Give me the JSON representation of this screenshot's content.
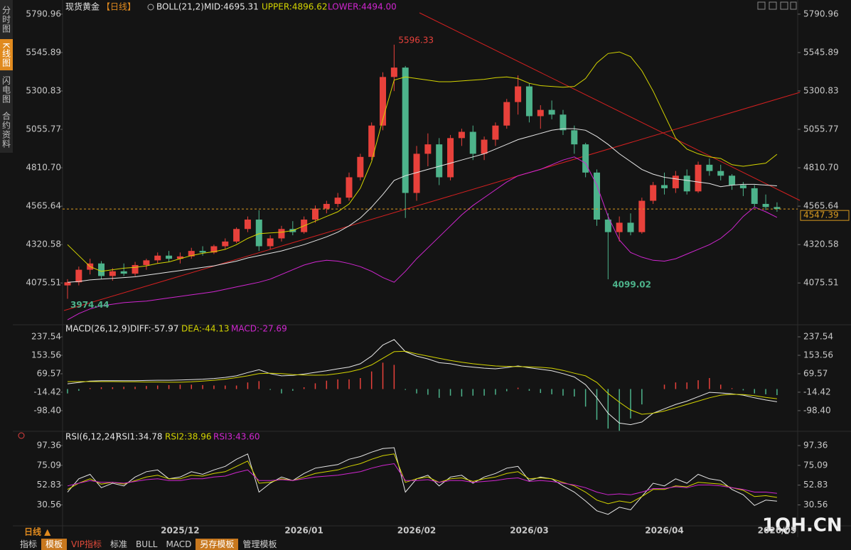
{
  "sidebar": [
    "分时图",
    "K线图",
    "闪电图",
    "合约资料"
  ],
  "toolbar": [
    "指标",
    "模板",
    "VIP指标",
    "标准",
    "BULL",
    "MACD",
    "另存模板",
    "管理模板"
  ],
  "period_selector": "日线 ▲",
  "watermark": "1QH.CN",
  "chart_data": [
    {
      "type": "candlestick",
      "title": "现货黄金",
      "period": "【日线】",
      "indicator": "BOLL(21,2)",
      "categories": [
        null,
        null,
        null,
        null,
        null,
        null,
        null,
        null,
        null,
        null,
        "2025/12",
        null,
        null,
        null,
        null,
        null,
        null,
        null,
        null,
        null,
        null,
        "2026/01",
        null,
        null,
        null,
        null,
        null,
        null,
        null,
        null,
        null,
        "2026/02",
        null,
        null,
        null,
        null,
        null,
        null,
        null,
        null,
        null,
        "2026/03",
        null,
        null,
        null,
        null,
        null,
        null,
        null,
        null,
        null,
        null,
        null,
        "2026/04",
        null,
        null,
        null,
        null,
        null,
        null,
        null,
        null,
        null,
        "2026/05"
      ],
      "open": [
        4060,
        4080,
        4160,
        4200,
        4120,
        4150,
        4135,
        4190,
        4220,
        4250,
        4230,
        4245,
        4280,
        4270,
        4310,
        4340,
        4420,
        4480,
        4310,
        4360,
        4420,
        4400,
        4480,
        4550,
        4580,
        4620,
        4750,
        4880,
        5080,
        5390,
        5450,
        4650,
        4900,
        4960,
        4750,
        5000,
        5040,
        4900,
        4990,
        5080,
        5230,
        5330,
        5140,
        5180,
        5150,
        5050,
        4960,
        4780,
        4480,
        4400,
        4460,
        4400,
        4600,
        4700,
        4680,
        4760,
        4660,
        4830,
        4790,
        4760,
        4700,
        4680,
        4580,
        4560
      ],
      "high": [
        4100,
        4180,
        4230,
        4215,
        4170,
        4200,
        4210,
        4230,
        4270,
        4280,
        4270,
        4300,
        4310,
        4320,
        4360,
        4430,
        4500,
        4540,
        4380,
        4440,
        4470,
        4500,
        4570,
        4600,
        4650,
        4780,
        4900,
        5100,
        5420,
        5596.33,
        5460,
        4950,
        5030,
        5000,
        5020,
        5060,
        5080,
        5010,
        5100,
        5250,
        5400,
        5350,
        5210,
        5240,
        5180,
        5080,
        4970,
        4800,
        4520,
        4500,
        4520,
        4620,
        4720,
        4780,
        4790,
        4800,
        4850,
        4870,
        4830,
        4770,
        4720,
        4700,
        4640,
        4590
      ],
      "low": [
        3974.44,
        4060,
        4130,
        4100,
        4090,
        4120,
        4120,
        4160,
        4200,
        4210,
        4200,
        4230,
        4250,
        4260,
        4290,
        4330,
        4400,
        4280,
        4290,
        4340,
        4380,
        4390,
        4460,
        4520,
        4560,
        4600,
        4730,
        4860,
        5050,
        5300,
        4490,
        4600,
        4820,
        4700,
        4730,
        4950,
        4860,
        4860,
        4950,
        5060,
        5150,
        5100,
        5060,
        5120,
        5020,
        4900,
        4750,
        4440,
        4099.02,
        4340,
        4380,
        4390,
        4580,
        4640,
        4650,
        4640,
        4650,
        4760,
        4730,
        4670,
        4630,
        4560,
        4540,
        4530
      ],
      "close": [
        4080,
        4160,
        4200,
        4120,
        4150,
        4135,
        4190,
        4220,
        4250,
        4230,
        4245,
        4280,
        4270,
        4310,
        4340,
        4420,
        4480,
        4310,
        4360,
        4420,
        4400,
        4480,
        4550,
        4580,
        4620,
        4750,
        4880,
        5080,
        5390,
        5450,
        4650,
        4900,
        4960,
        4750,
        5000,
        5040,
        4900,
        4990,
        5080,
        5230,
        5330,
        5140,
        5180,
        5150,
        5050,
        4960,
        4780,
        4480,
        4400,
        4460,
        4400,
        4600,
        4700,
        4680,
        4760,
        4660,
        4830,
        4790,
        4760,
        4700,
        4680,
        4580,
        4560,
        4547.39
      ],
      "up_color": "#e8413b",
      "down_color": "#4db38b",
      "series": [
        {
          "name": "MID:4695.31",
          "color": "#e6e6e6",
          "values": [
            4080,
            4085,
            4095,
            4100,
            4105,
            4110,
            4115,
            4125,
            4135,
            4145,
            4155,
            4165,
            4175,
            4185,
            4200,
            4215,
            4235,
            4250,
            4265,
            4280,
            4300,
            4320,
            4345,
            4370,
            4400,
            4440,
            4490,
            4560,
            4640,
            4730,
            4760,
            4780,
            4800,
            4820,
            4840,
            4860,
            4880,
            4900,
            4930,
            4960,
            4990,
            5010,
            5030,
            5050,
            5060,
            5060,
            5050,
            5010,
            4960,
            4900,
            4850,
            4800,
            4770,
            4750,
            4740,
            4730,
            4720,
            4710,
            4690,
            4700,
            4705,
            4705,
            4700,
            4695.31
          ]
        },
        {
          "name": "UPPER:4896.62",
          "color": "#d4d400",
          "values": [
            4320,
            4250,
            4180,
            4150,
            4160,
            4170,
            4175,
            4185,
            4200,
            4210,
            4230,
            4250,
            4265,
            4275,
            4290,
            4320,
            4360,
            4390,
            4395,
            4400,
            4410,
            4440,
            4470,
            4500,
            4530,
            4580,
            4680,
            4850,
            5120,
            5370,
            5390,
            5380,
            5370,
            5360,
            5360,
            5365,
            5370,
            5375,
            5385,
            5390,
            5380,
            5350,
            5335,
            5330,
            5325,
            5330,
            5380,
            5480,
            5540,
            5550,
            5520,
            5430,
            5300,
            5150,
            5000,
            4930,
            4900,
            4880,
            4870,
            4830,
            4820,
            4830,
            4840,
            4896.62
          ]
        },
        {
          "name": "LOWER:4494.00",
          "color": "#d026d0",
          "values": [
            3840,
            3880,
            3910,
            3930,
            3940,
            3950,
            3955,
            3960,
            3970,
            3980,
            3990,
            4000,
            4010,
            4020,
            4035,
            4050,
            4065,
            4080,
            4100,
            4130,
            4160,
            4190,
            4210,
            4220,
            4215,
            4200,
            4180,
            4150,
            4110,
            4080,
            4150,
            4230,
            4300,
            4370,
            4440,
            4510,
            4570,
            4620,
            4670,
            4720,
            4760,
            4780,
            4800,
            4830,
            4860,
            4880,
            4840,
            4700,
            4500,
            4350,
            4270,
            4240,
            4220,
            4215,
            4230,
            4260,
            4290,
            4320,
            4360,
            4420,
            4500,
            4560,
            4530,
            4494
          ]
        }
      ],
      "last_price": 4547.39,
      "ylim": [
        3818,
        5845
      ],
      "yticks": [
        5790.96,
        5545.89,
        5300.83,
        5055.77,
        {
          "value": 4810.7,
          "label": "4810.70"
        },
        4565.64,
        4320.58,
        4075.51
      ]
    },
    {
      "type": "macd",
      "title": "MACD(26,12,9)",
      "up_color": "#e8413b",
      "down_color": "#4db38b",
      "series": [
        {
          "name": "DIFF:-57.97",
          "color": "#e6e6e6",
          "values": [
            24,
            30,
            36,
            38,
            38,
            38,
            38,
            39,
            40,
            40,
            41,
            43,
            45,
            48,
            53,
            60,
            75,
            88,
            70,
            60,
            62,
            68,
            76,
            83,
            92,
            100,
            115,
            150,
            200,
            225,
            170,
            150,
            137,
            120,
            115,
            105,
            100,
            95,
            92,
            98,
            105,
            97,
            90,
            83,
            70,
            55,
            20,
            -40,
            -110,
            -155,
            -162,
            -150,
            -110,
            -90,
            -70,
            -55,
            -35,
            -15,
            -18,
            -22,
            -28,
            -40,
            -50,
            -57.97
          ]
        },
        {
          "name": "DEA:-44.13",
          "color": "#d4d400",
          "values": [
            34,
            34,
            34,
            34,
            34,
            33,
            33,
            32,
            32,
            31,
            31,
            33,
            36,
            40,
            45,
            52,
            60,
            70,
            72,
            70,
            66,
            64,
            63,
            64,
            70,
            78,
            90,
            110,
            140,
            170,
            172,
            160,
            150,
            140,
            130,
            122,
            115,
            110,
            105,
            103,
            102,
            101,
            99,
            95,
            85,
            72,
            60,
            30,
            -20,
            -60,
            -95,
            -115,
            -110,
            -100,
            -85,
            -70,
            -55,
            -40,
            -28,
            -24,
            -25,
            -30,
            -38,
            -44.13
          ]
        },
        {
          "name": "MACD:-27.69",
          "color": "#d026d0",
          "values": [
            -20,
            -8,
            4,
            8,
            8,
            10,
            10,
            14,
            16,
            18,
            20,
            20,
            18,
            16,
            16,
            16,
            30,
            36,
            -4,
            -20,
            -8,
            8,
            26,
            38,
            44,
            44,
            50,
            80,
            120,
            110,
            -4,
            -20,
            -26,
            -40,
            -30,
            -34,
            -30,
            -30,
            -26,
            -10,
            6,
            -8,
            -18,
            -24,
            -30,
            -34,
            -80,
            -140,
            -180,
            -190,
            -134,
            -70,
            0,
            20,
            30,
            30,
            40,
            50,
            20,
            4,
            -6,
            -20,
            -24,
            -27.69
          ]
        }
      ],
      "ylim": [
        -186,
        257
      ],
      "yticks": [
        237.54,
        153.56,
        69.57,
        -14.42,
        {
          "value": -98.4,
          "label": "-98.40"
        }
      ]
    },
    {
      "type": "line",
      "title": "RSI(6,12,24)",
      "series": [
        {
          "name": "RSI1:34.78",
          "color": "#e6e6e6",
          "values": [
            45,
            60,
            65,
            50,
            55,
            52,
            62,
            68,
            70,
            60,
            62,
            68,
            65,
            70,
            74,
            82,
            88,
            45,
            55,
            62,
            58,
            66,
            72,
            74,
            76,
            82,
            85,
            90,
            94,
            95,
            45,
            60,
            64,
            52,
            62,
            64,
            55,
            62,
            66,
            72,
            74,
            58,
            62,
            60,
            52,
            45,
            35,
            24,
            20,
            28,
            25,
            40,
            55,
            52,
            60,
            55,
            65,
            60,
            58,
            48,
            42,
            30,
            36,
            34.78
          ]
        },
        {
          "name": "RSI2:38.96",
          "color": "#d4d400",
          "values": [
            48,
            55,
            60,
            54,
            56,
            54,
            58,
            62,
            64,
            60,
            60,
            64,
            63,
            66,
            68,
            74,
            80,
            55,
            56,
            60,
            58,
            62,
            66,
            68,
            70,
            74,
            77,
            82,
            86,
            88,
            56,
            60,
            62,
            56,
            60,
            61,
            57,
            60,
            62,
            66,
            68,
            60,
            61,
            60,
            56,
            52,
            45,
            36,
            32,
            35,
            33,
            40,
            48,
            48,
            52,
            51,
            56,
            55,
            54,
            50,
            47,
            40,
            41,
            38.96
          ]
        },
        {
          "name": "RSI3:43.60",
          "color": "#d026d0",
          "values": [
            52,
            55,
            58,
            56,
            56,
            55,
            57,
            59,
            60,
            58,
            58,
            60,
            60,
            62,
            63,
            67,
            70,
            58,
            58,
            59,
            58,
            60,
            62,
            63,
            64,
            66,
            68,
            72,
            75,
            77,
            58,
            58,
            59,
            56,
            58,
            58,
            56,
            57,
            58,
            60,
            61,
            57,
            58,
            57,
            55,
            53,
            50,
            45,
            42,
            43,
            42,
            45,
            49,
            49,
            51,
            50,
            53,
            53,
            52,
            50,
            48,
            45,
            45,
            43.6
          ]
        }
      ],
      "ylim": [
        7,
        103
      ],
      "yticks": [
        97.36,
        75.09,
        52.83,
        30.56
      ]
    }
  ]
}
